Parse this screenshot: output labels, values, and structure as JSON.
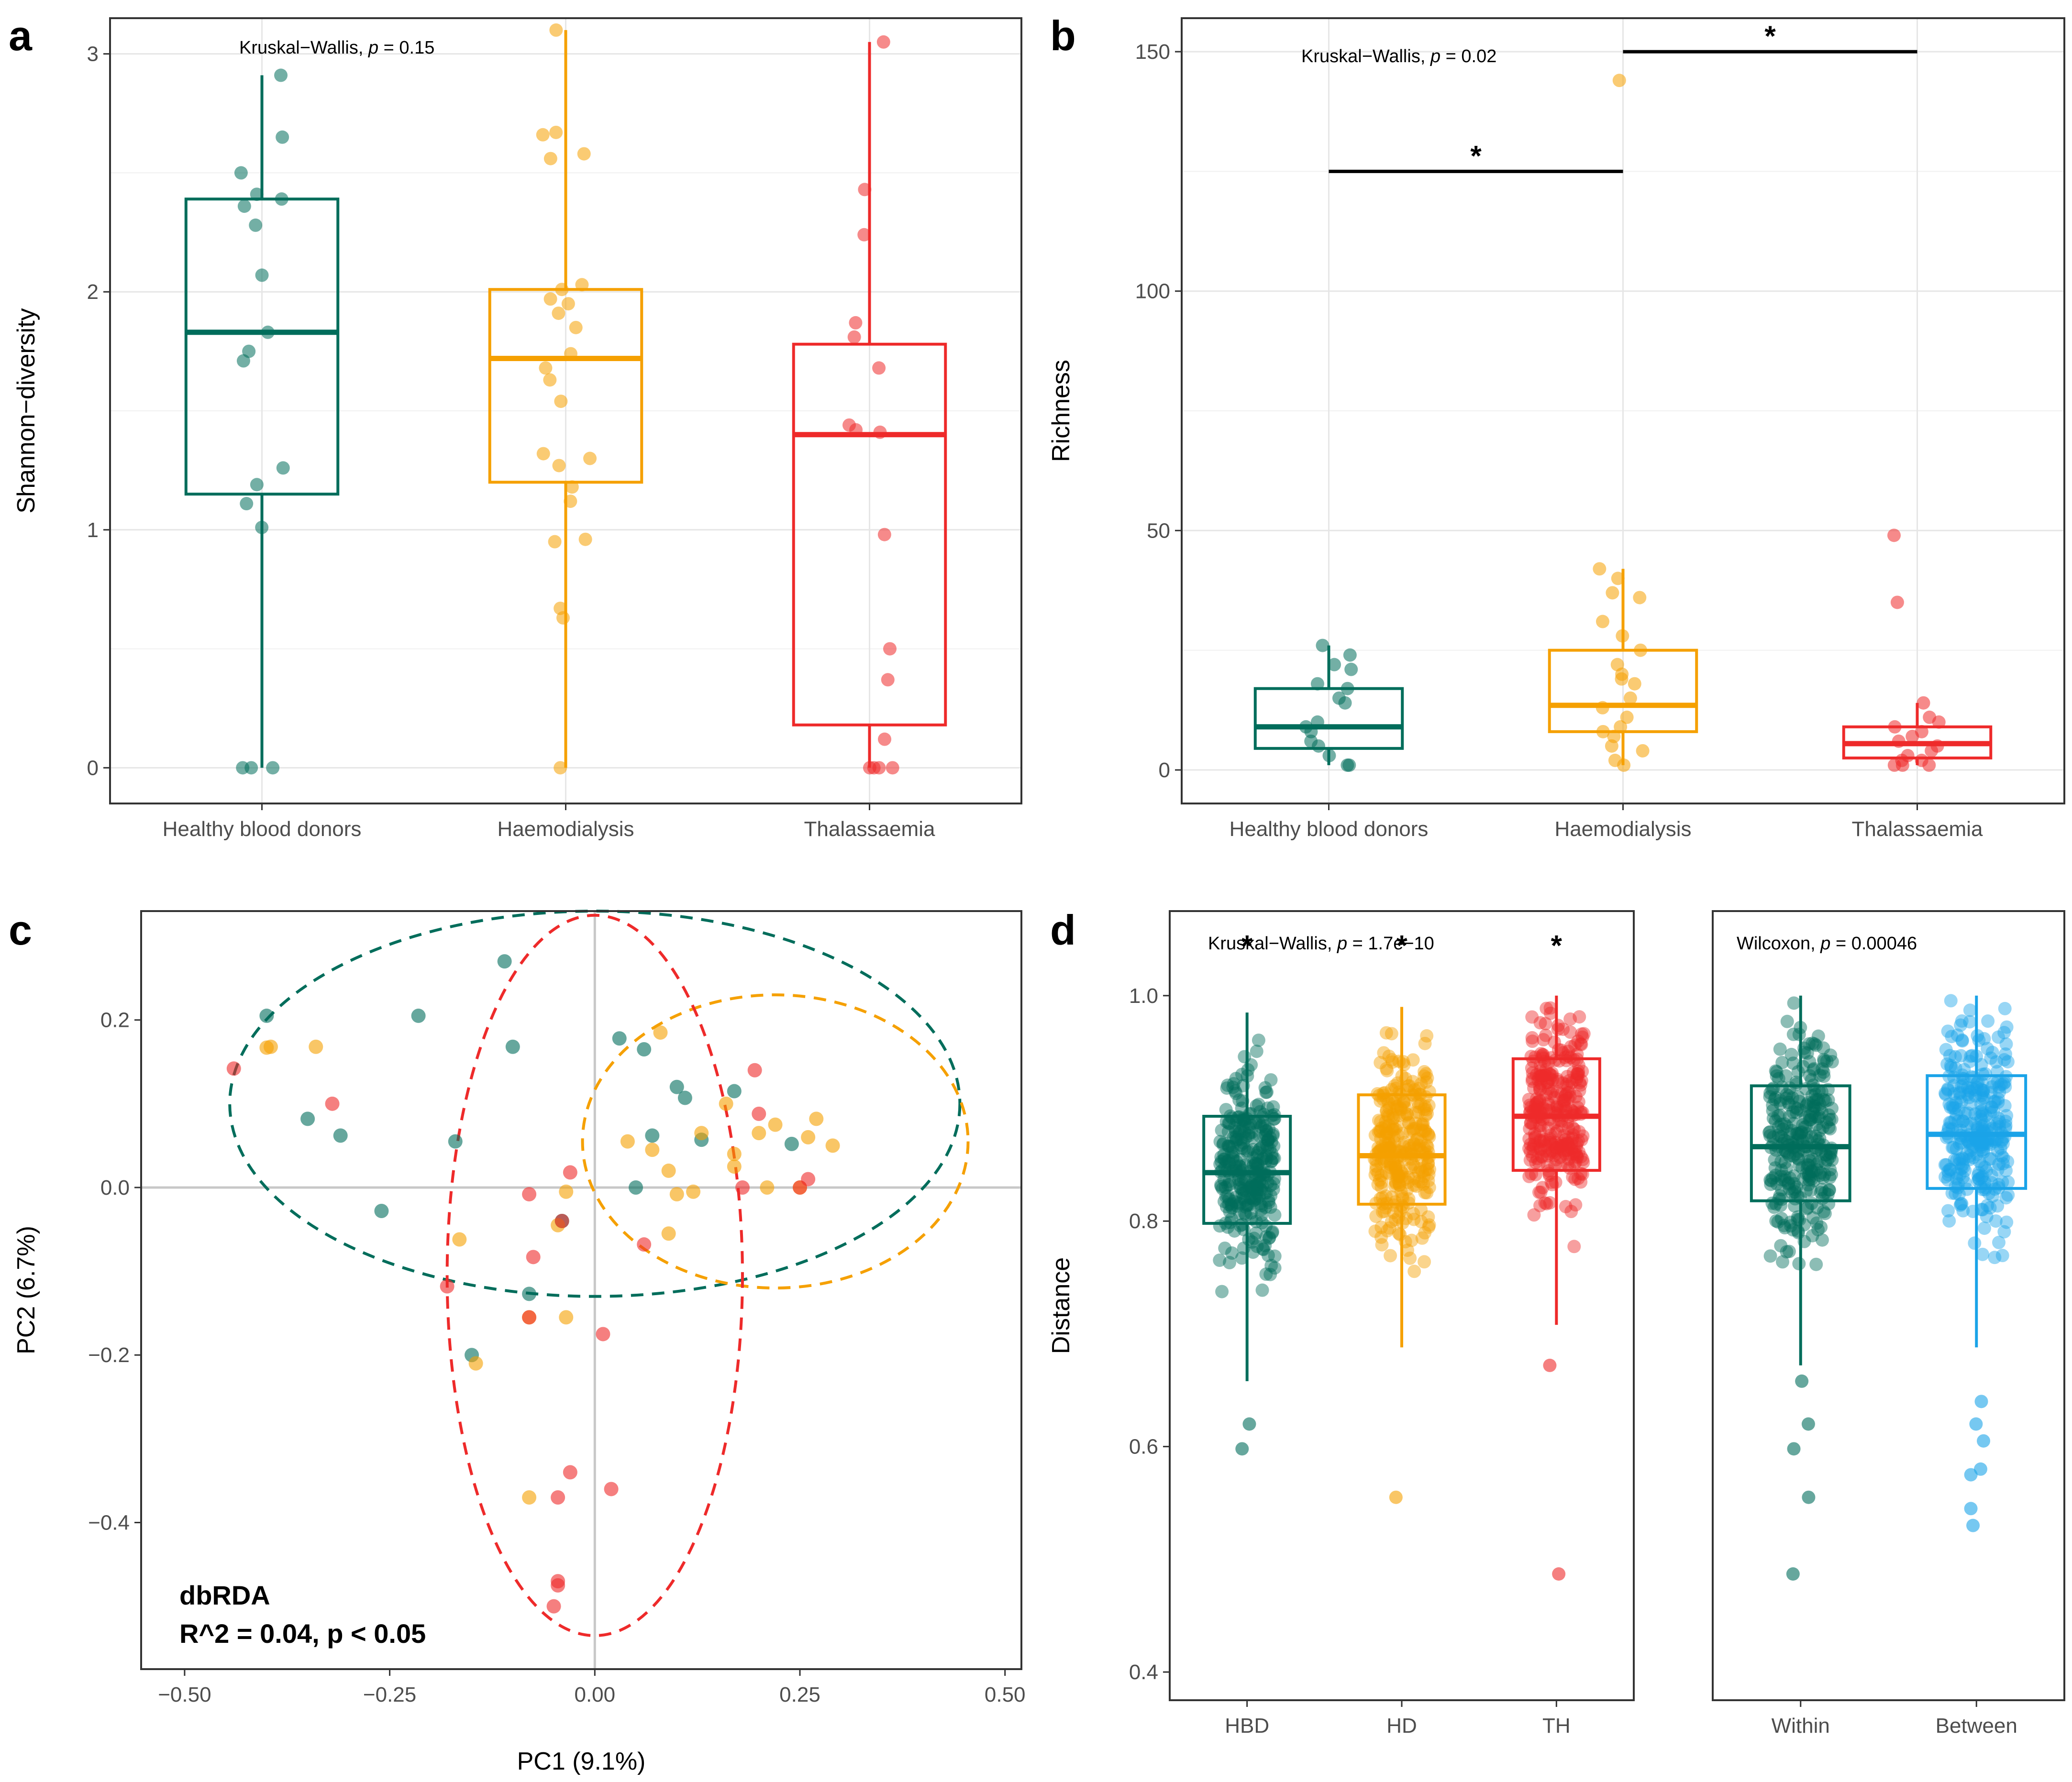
{
  "colors": {
    "hbd": "#006D5B",
    "hd": "#F5A000",
    "th": "#EE2A2A",
    "between": "#1AA3E8",
    "grid": "#e6e6e6",
    "frame": "#333333"
  },
  "chart_data": [
    {
      "panel": "a",
      "type": "box",
      "ylabel": "Shannon−diversity",
      "xlabel": "",
      "ylim": [
        -0.15,
        3.15
      ],
      "yticks": [
        "0",
        "1",
        "2",
        "3"
      ],
      "annotation": {
        "prefix": "Kruskal−Wallis, ",
        "p": "p",
        "suffix": " = 0.15"
      },
      "categories": [
        "Healthy blood donors",
        "Haemodialysis",
        "Thalassaemia"
      ],
      "boxes": [
        {
          "q1": 1.15,
          "median": 1.83,
          "q3": 2.39,
          "whisker_low": 0.0,
          "whisker_high": 2.91,
          "points": [
            2.91,
            2.65,
            2.5,
            2.41,
            2.39,
            2.36,
            2.28,
            2.07,
            1.83,
            1.75,
            1.71,
            1.26,
            1.19,
            1.11,
            1.01,
            0.0,
            0.0,
            0.0
          ]
        },
        {
          "q1": 1.2,
          "median": 1.72,
          "q3": 2.01,
          "whisker_low": 0.0,
          "whisker_high": 3.1,
          "points": [
            3.1,
            2.67,
            2.66,
            2.58,
            2.56,
            2.03,
            2.01,
            1.97,
            1.95,
            1.91,
            1.85,
            1.74,
            1.68,
            1.63,
            1.54,
            1.32,
            1.3,
            1.27,
            1.18,
            1.12,
            0.96,
            0.95,
            0.67,
            0.63,
            0.0
          ]
        },
        {
          "q1": 0.18,
          "median": 1.4,
          "q3": 1.78,
          "whisker_low": 0.0,
          "whisker_high": 3.05,
          "points": [
            3.05,
            2.43,
            2.24,
            1.87,
            1.81,
            1.68,
            1.44,
            1.42,
            1.41,
            0.98,
            0.5,
            0.37,
            0.12,
            0.0,
            0.0,
            0.0,
            0.0
          ]
        }
      ]
    },
    {
      "panel": "b",
      "type": "box",
      "ylabel": "Richness",
      "xlabel": "",
      "ylim": [
        -7,
        157
      ],
      "yticks": [
        "0",
        "50",
        "100",
        "150"
      ],
      "annotation": {
        "prefix": "Kruskal−Wallis, ",
        "p": "p",
        "suffix": " = 0.02"
      },
      "significance": [
        {
          "from": 0,
          "to": 1,
          "y": 125,
          "label": "*"
        },
        {
          "from": 1,
          "to": 2,
          "y": 150,
          "label": "*"
        }
      ],
      "categories": [
        "Healthy blood donors",
        "Haemodialysis",
        "Thalassaemia"
      ],
      "boxes": [
        {
          "q1": 4.5,
          "median": 9,
          "q3": 17,
          "whisker_low": 1,
          "whisker_high": 26,
          "points": [
            26,
            24,
            22,
            21,
            18,
            17,
            15,
            14,
            10,
            9,
            8,
            6,
            5,
            3,
            1,
            1
          ]
        },
        {
          "q1": 8,
          "median": 13.5,
          "q3": 25,
          "whisker_low": 1,
          "whisker_high": 42,
          "points": [
            144,
            42,
            40,
            37,
            36,
            31,
            28,
            25,
            22,
            20,
            19,
            18,
            15,
            13,
            11,
            9,
            8,
            7,
            5,
            4,
            2,
            1
          ]
        },
        {
          "q1": 2.5,
          "median": 5.5,
          "q3": 9,
          "whisker_low": 1,
          "whisker_high": 14,
          "points": [
            49,
            35,
            14,
            11,
            10,
            9,
            8,
            7,
            6,
            5,
            4,
            3,
            2,
            2,
            1,
            1,
            1
          ]
        }
      ]
    },
    {
      "panel": "c",
      "type": "scatter",
      "xlabel": "PC1 (9.1%)",
      "ylabel": "PC2 (6.7%)",
      "xlim": [
        -0.553,
        0.52
      ],
      "ylim": [
        -0.575,
        0.33
      ],
      "xticks": [
        -0.5,
        -0.25,
        0.0,
        0.25,
        0.5
      ],
      "xtick_labels": [
        "−0.50",
        "−0.25",
        "0.00",
        "0.25",
        "0.50"
      ],
      "yticks": [
        -0.4,
        -0.2,
        0.0,
        0.2
      ],
      "ytick_labels": [
        "−0.4",
        "−0.2",
        "0.0",
        "0.2"
      ],
      "annotation_line1": "dbRDA",
      "annotation_line2": "R^2 = 0.04, p < 0.05",
      "ellipses": [
        {
          "group": "hbd",
          "cx": 0.0,
          "cy": 0.1,
          "rx": 0.445,
          "ry": 0.23
        },
        {
          "group": "hd",
          "cx": 0.22,
          "cy": 0.055,
          "rx": 0.235,
          "ry": 0.175
        },
        {
          "group": "th",
          "cx": 0.0,
          "cy": -0.105,
          "rx": 0.18,
          "ry": 0.43
        }
      ],
      "series": [
        {
          "group": "hbd",
          "points": [
            [
              -0.4,
              0.205
            ],
            [
              -0.35,
              0.082
            ],
            [
              -0.31,
              0.062
            ],
            [
              -0.215,
              0.205
            ],
            [
              -0.26,
              -0.028
            ],
            [
              -0.17,
              0.055
            ],
            [
              -0.1,
              0.168
            ],
            [
              -0.11,
              0.27
            ],
            [
              -0.08,
              -0.127
            ],
            [
              -0.15,
              -0.2
            ],
            [
              -0.04,
              -0.04
            ],
            [
              0.03,
              0.178
            ],
            [
              0.06,
              0.165
            ],
            [
              0.07,
              0.062
            ],
            [
              0.1,
              0.12
            ],
            [
              0.11,
              0.107
            ],
            [
              0.13,
              0.057
            ],
            [
              0.17,
              0.115
            ],
            [
              0.24,
              0.052
            ],
            [
              0.05,
              -0.0
            ]
          ]
        },
        {
          "group": "hd",
          "points": [
            [
              -0.395,
              0.168
            ],
            [
              -0.4,
              0.167
            ],
            [
              -0.34,
              0.168
            ],
            [
              -0.165,
              -0.062
            ],
            [
              -0.145,
              -0.21
            ],
            [
              -0.08,
              -0.155
            ],
            [
              -0.035,
              -0.005
            ],
            [
              -0.045,
              -0.045
            ],
            [
              0.04,
              0.055
            ],
            [
              0.08,
              0.185
            ],
            [
              0.07,
              0.045
            ],
            [
              0.09,
              0.02
            ],
            [
              0.1,
              -0.008
            ],
            [
              0.12,
              -0.005
            ],
            [
              0.13,
              0.065
            ],
            [
              0.16,
              0.1
            ],
            [
              0.17,
              0.04
            ],
            [
              0.2,
              0.065
            ],
            [
              0.22,
              0.075
            ],
            [
              0.26,
              0.06
            ],
            [
              0.27,
              0.082
            ],
            [
              0.29,
              0.05
            ],
            [
              0.25,
              0.0
            ],
            [
              0.21,
              0.0
            ],
            [
              0.17,
              0.025
            ],
            [
              0.09,
              -0.055
            ],
            [
              -0.08,
              -0.37
            ],
            [
              -0.035,
              -0.155
            ]
          ]
        },
        {
          "group": "th",
          "points": [
            [
              -0.44,
              0.142
            ],
            [
              -0.32,
              0.1
            ],
            [
              -0.18,
              -0.118
            ],
            [
              -0.08,
              -0.008
            ],
            [
              -0.08,
              -0.155
            ],
            [
              -0.075,
              -0.083
            ],
            [
              -0.04,
              -0.04
            ],
            [
              -0.03,
              0.018
            ],
            [
              -0.05,
              -0.5
            ],
            [
              0.01,
              -0.175
            ],
            [
              0.06,
              -0.068
            ],
            [
              0.195,
              0.14
            ],
            [
              0.2,
              0.088
            ],
            [
              0.18,
              0.0
            ],
            [
              0.25,
              0.0
            ],
            [
              0.26,
              0.01
            ],
            [
              -0.03,
              -0.34
            ],
            [
              -0.045,
              -0.37
            ],
            [
              0.02,
              -0.36
            ],
            [
              -0.045,
              -0.47
            ],
            [
              -0.045,
              -0.475
            ]
          ]
        }
      ]
    },
    {
      "panel": "d-left",
      "type": "box",
      "ylabel": "Distance",
      "xlabel": "",
      "ylim": [
        0.375,
        1.075
      ],
      "yticks": [
        "0.4",
        "0.6",
        "0.8",
        "1.0"
      ],
      "annotation": {
        "prefix": "Kruskal−Wallis, ",
        "p": "p",
        "suffix": " = 1.7e−10"
      },
      "sig_labels": [
        "*",
        "*",
        "*"
      ],
      "categories": [
        "HBD",
        "HD",
        "TH"
      ],
      "boxes": [
        {
          "q1": 0.798,
          "median": 0.843,
          "q3": 0.893,
          "whisker_low": 0.658,
          "whisker_high": 0.985,
          "outliers": [
            0.62,
            0.598
          ]
        },
        {
          "q1": 0.815,
          "median": 0.858,
          "q3": 0.912,
          "whisker_low": 0.688,
          "whisker_high": 0.99,
          "outliers": [
            0.555
          ]
        },
        {
          "q1": 0.845,
          "median": 0.893,
          "q3": 0.944,
          "whisker_low": 0.708,
          "whisker_high": 1.0,
          "outliers": [
            0.672,
            0.487
          ]
        }
      ]
    },
    {
      "panel": "d-right",
      "type": "box",
      "ylabel": "",
      "xlabel": "",
      "ylim": [
        0.375,
        1.075
      ],
      "annotation": {
        "prefix": "Wilcoxon, ",
        "p": "p",
        "suffix": " = 0.00046"
      },
      "categories": [
        "Within",
        "Between"
      ],
      "boxes": [
        {
          "q1": 0.818,
          "median": 0.866,
          "q3": 0.92,
          "whisker_low": 0.672,
          "whisker_high": 1.0,
          "outliers": [
            0.658,
            0.62,
            0.598,
            0.555,
            0.487
          ]
        },
        {
          "q1": 0.829,
          "median": 0.877,
          "q3": 0.929,
          "whisker_low": 0.688,
          "whisker_high": 1.0,
          "outliers": [
            0.64,
            0.62,
            0.605,
            0.58,
            0.575,
            0.545,
            0.53
          ]
        }
      ]
    }
  ],
  "panel_letters": [
    "a",
    "b",
    "c",
    "d"
  ]
}
